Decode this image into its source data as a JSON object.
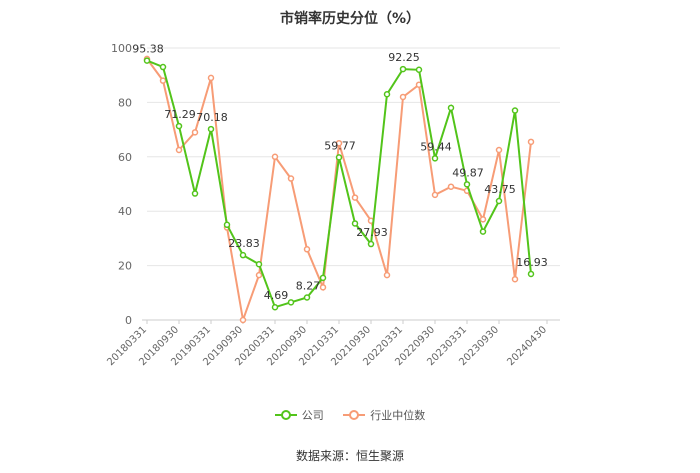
{
  "chart_data": {
    "type": "line",
    "title": "市销率历史分位（%）",
    "source": "数据来源：恒生聚源",
    "ylim": [
      0,
      100
    ],
    "yticks": [
      "0",
      "20",
      "40",
      "60",
      "80",
      "100"
    ],
    "x": [
      "20180331",
      "20180630",
      "20180930",
      "20181231",
      "20190331",
      "20190630",
      "20190930",
      "20191231",
      "20200331",
      "20200630",
      "20200930",
      "20201231",
      "20210331",
      "20210630",
      "20210930",
      "20211231",
      "20220331",
      "20220630",
      "20220930",
      "20221231",
      "20230331",
      "20230630",
      "20230930",
      "20231231",
      "20240331",
      "20240430"
    ],
    "xtick_labels": [
      "20180331",
      "20180930",
      "20190331",
      "20190930",
      "20200331",
      "20200930",
      "20210331",
      "20210930",
      "20220331",
      "20220930",
      "20230331",
      "20230930",
      "20240430"
    ],
    "grid": true,
    "legend_position": "bottom",
    "series": [
      {
        "name": "公司",
        "color": "#52c41a",
        "values": [
          95.38,
          93.0,
          71.29,
          46.5,
          70.18,
          35.0,
          23.83,
          20.5,
          4.69,
          6.5,
          8.27,
          15.5,
          59.77,
          35.5,
          27.93,
          83.0,
          92.25,
          92.0,
          59.44,
          78.0,
          49.87,
          32.5,
          43.75,
          77.0,
          16.93,
          null
        ],
        "labels": {
          "0": "95.38",
          "2": "71.29",
          "4": "70.18",
          "6": "23.83",
          "8": "4.69",
          "10": "8.27",
          "12": "59.77",
          "14": "27.93",
          "16": "92.25",
          "18": "59.44",
          "20": "49.87",
          "22": "43.75",
          "24": "16.93"
        }
      },
      {
        "name": "行业中位数",
        "color": "#f79c76",
        "values": [
          96.0,
          88.0,
          62.5,
          69.0,
          89.0,
          34.0,
          0.0,
          16.5,
          60.0,
          52.0,
          26.0,
          12.0,
          65.0,
          45.0,
          36.5,
          16.5,
          82.0,
          86.5,
          46.0,
          49.0,
          47.5,
          37.0,
          62.5,
          15.0,
          65.5,
          null
        ]
      }
    ]
  }
}
